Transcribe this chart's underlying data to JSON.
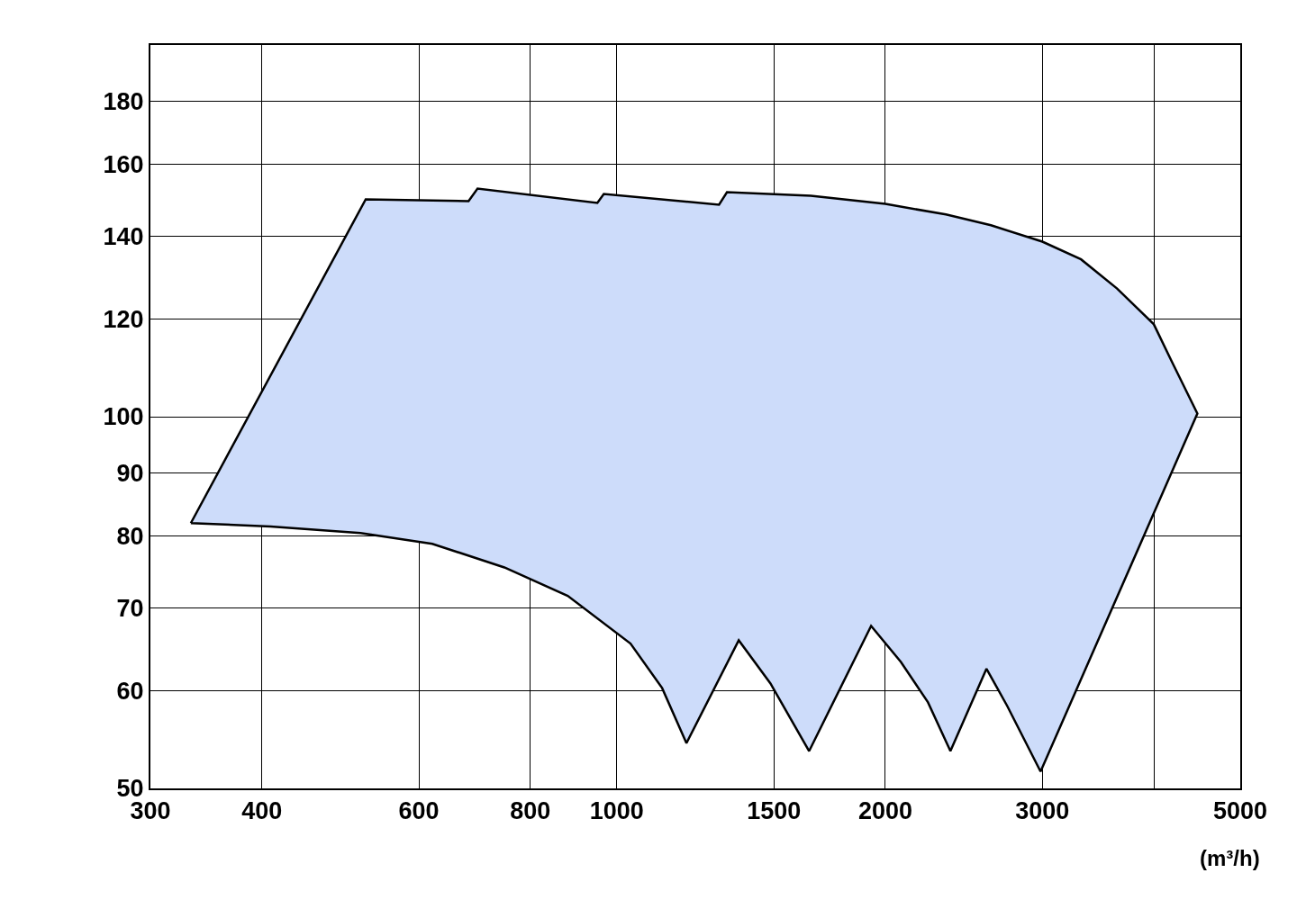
{
  "chart_data": {
    "type": "area",
    "xlabel": "(m³/h)",
    "series": [
      {
        "color": "#cddcfa",
        "x": [
          333,
          523,
          682,
          698,
          951,
          967,
          1302,
          1329,
          1650,
          2000,
          2339,
          2627,
          3000,
          3315,
          3638,
          4000,
          4183,
          4476,
          3920,
          2986,
          2740,
          2597,
          2366,
          2233,
          2082,
          1928,
          1643,
          1487,
          1370,
          1197,
          1124,
          1036,
          881,
          748,
          621,
          516,
          409,
          333
        ],
        "values": [
          82.0,
          150,
          149.5,
          153,
          149,
          151.5,
          148.5,
          152,
          151,
          148.7,
          145.8,
          142.9,
          138.6,
          134.1,
          127,
          118.8,
          111.1,
          100.6,
          80.8,
          51.6,
          58.3,
          62.5,
          53.6,
          58.7,
          63.3,
          67.7,
          53.6,
          60.8,
          65.9,
          54.4,
          60.3,
          65.5,
          71.6,
          75.5,
          78.9,
          80.5,
          81.5,
          82.0
        ]
      }
    ],
    "log": "xy",
    "xlim": [
      300,
      5000
    ],
    "xticks": [
      300,
      400,
      600,
      800,
      1000,
      1500,
      2000,
      3000,
      {
        "value": 4000,
        "label": null
      },
      5000
    ],
    "ylim": [
      50,
      200
    ],
    "yticks": [
      50,
      60,
      70,
      80,
      90,
      100,
      120,
      140,
      160,
      180
    ],
    "grid": true
  }
}
